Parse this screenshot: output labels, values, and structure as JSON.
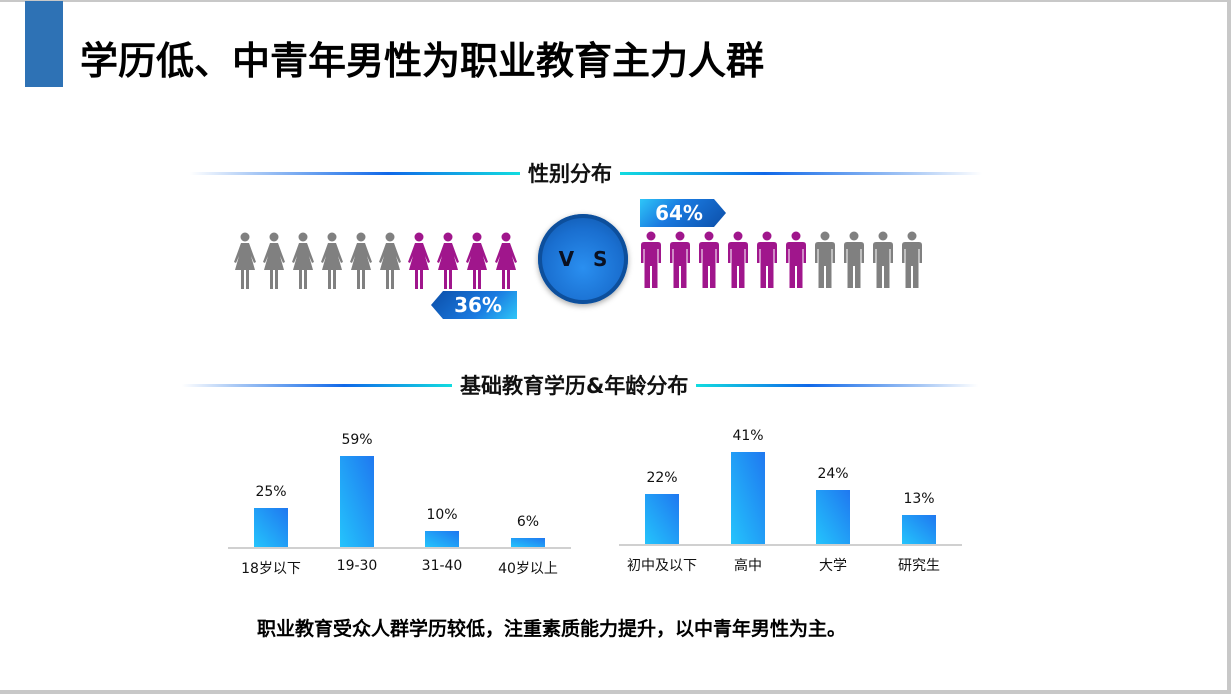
{
  "slide": {
    "title": "学历低、中青年男性为职业教育主力人群",
    "accent_color": "#2e72b5",
    "conclusion": "职业教育受众人群学历较低，注重素质能力提升，以中青年男性为主。"
  },
  "gender_section": {
    "header": "性别分布",
    "vs_label": "V S",
    "female": {
      "percent_label": "36%",
      "icons_total": 10,
      "icons_highlighted": 4,
      "highlight_side": "right"
    },
    "male": {
      "percent_label": "64%",
      "icons_total": 10,
      "icons_highlighted": 6,
      "highlight_side": "left"
    },
    "colors": {
      "highlight": "#a0168c",
      "neutral": "#808080",
      "tag": "#1a6fd0"
    }
  },
  "edu_age_section": {
    "header": "基础教育学历&年龄分布"
  },
  "chart_data": [
    {
      "type": "bar",
      "title": "年龄分布",
      "categories": [
        "18岁以下",
        "19-30",
        "31-40",
        "40岁以上"
      ],
      "values": [
        25,
        59,
        10,
        6
      ],
      "value_labels": [
        "25%",
        "59%",
        "10%",
        "6%"
      ],
      "xlabel": "",
      "ylabel": "",
      "grid": false,
      "legend": null,
      "color": "#1f78f0"
    },
    {
      "type": "bar",
      "title": "学历分布",
      "categories": [
        "初中及以下",
        "高中",
        "大学",
        "研究生"
      ],
      "values": [
        22,
        41,
        24,
        13
      ],
      "value_labels": [
        "22%",
        "41%",
        "24%",
        "13%"
      ],
      "xlabel": "",
      "ylabel": "",
      "grid": false,
      "legend": null,
      "color": "#1f78f0"
    },
    {
      "type": "pictogram",
      "title": "性别分布",
      "categories": [
        "女",
        "男"
      ],
      "values": [
        36,
        64
      ]
    }
  ]
}
